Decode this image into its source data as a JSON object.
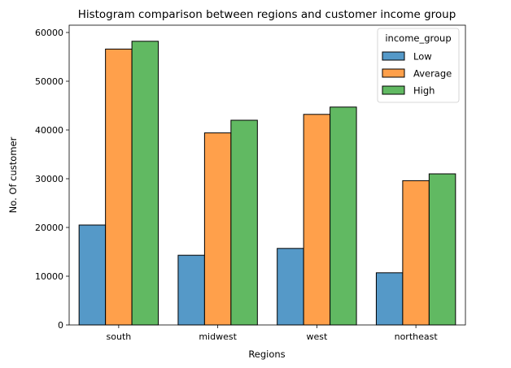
{
  "chart_data": {
    "type": "bar",
    "title": "Histogram comparison between regions and customer income group",
    "xlabel": "Regions",
    "ylabel": "No. Of customer",
    "categories": [
      "south",
      "midwest",
      "west",
      "northeast"
    ],
    "ylim": [
      0,
      61500
    ],
    "yticks": [
      0,
      10000,
      20000,
      30000,
      40000,
      50000,
      60000
    ],
    "ytick_labels": [
      "0",
      "10000",
      "20000",
      "30000",
      "40000",
      "50000",
      "60000"
    ],
    "grid": false,
    "legend": {
      "title": "income_group",
      "placement": "top-right"
    },
    "series": [
      {
        "name": "Low",
        "color": "#5599c8",
        "values": [
          20500,
          14300,
          15700,
          10700
        ]
      },
      {
        "name": "Average",
        "color": "#ffa04b",
        "values": [
          56600,
          39400,
          43200,
          29600
        ]
      },
      {
        "name": "High",
        "color": "#61b962",
        "values": [
          58200,
          42000,
          44700,
          31000
        ]
      }
    ]
  }
}
